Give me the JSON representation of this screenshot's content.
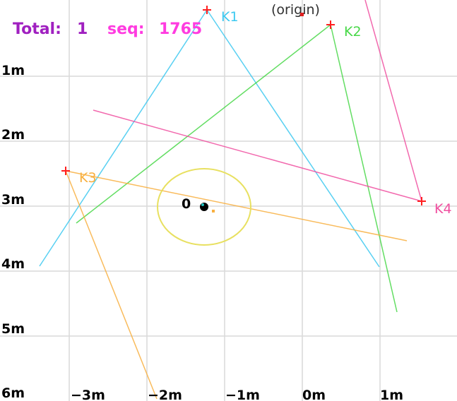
{
  "hud": {
    "total_label": "Total:",
    "total_value": "1",
    "seq_label": "seq:",
    "seq_value": "1765",
    "total_color": "#a020c0",
    "seq_color": "#ff3ce0"
  },
  "origin_label": "(origin)",
  "y_axis": [
    "1m",
    "2m",
    "3m",
    "4m",
    "5m",
    "6m"
  ],
  "x_axis": [
    "−3m",
    "−2m",
    "−1m",
    "0m",
    "1m"
  ],
  "beacons": [
    {
      "name": "K1",
      "color": "#3cc8f0"
    },
    {
      "name": "K2",
      "color": "#48d848"
    },
    {
      "name": "K3",
      "color": "#f8b040"
    },
    {
      "name": "K4",
      "color": "#f050a0"
    }
  ],
  "tracked": {
    "id": "0",
    "color": "#000000",
    "range_color": "#e8e060"
  }
}
